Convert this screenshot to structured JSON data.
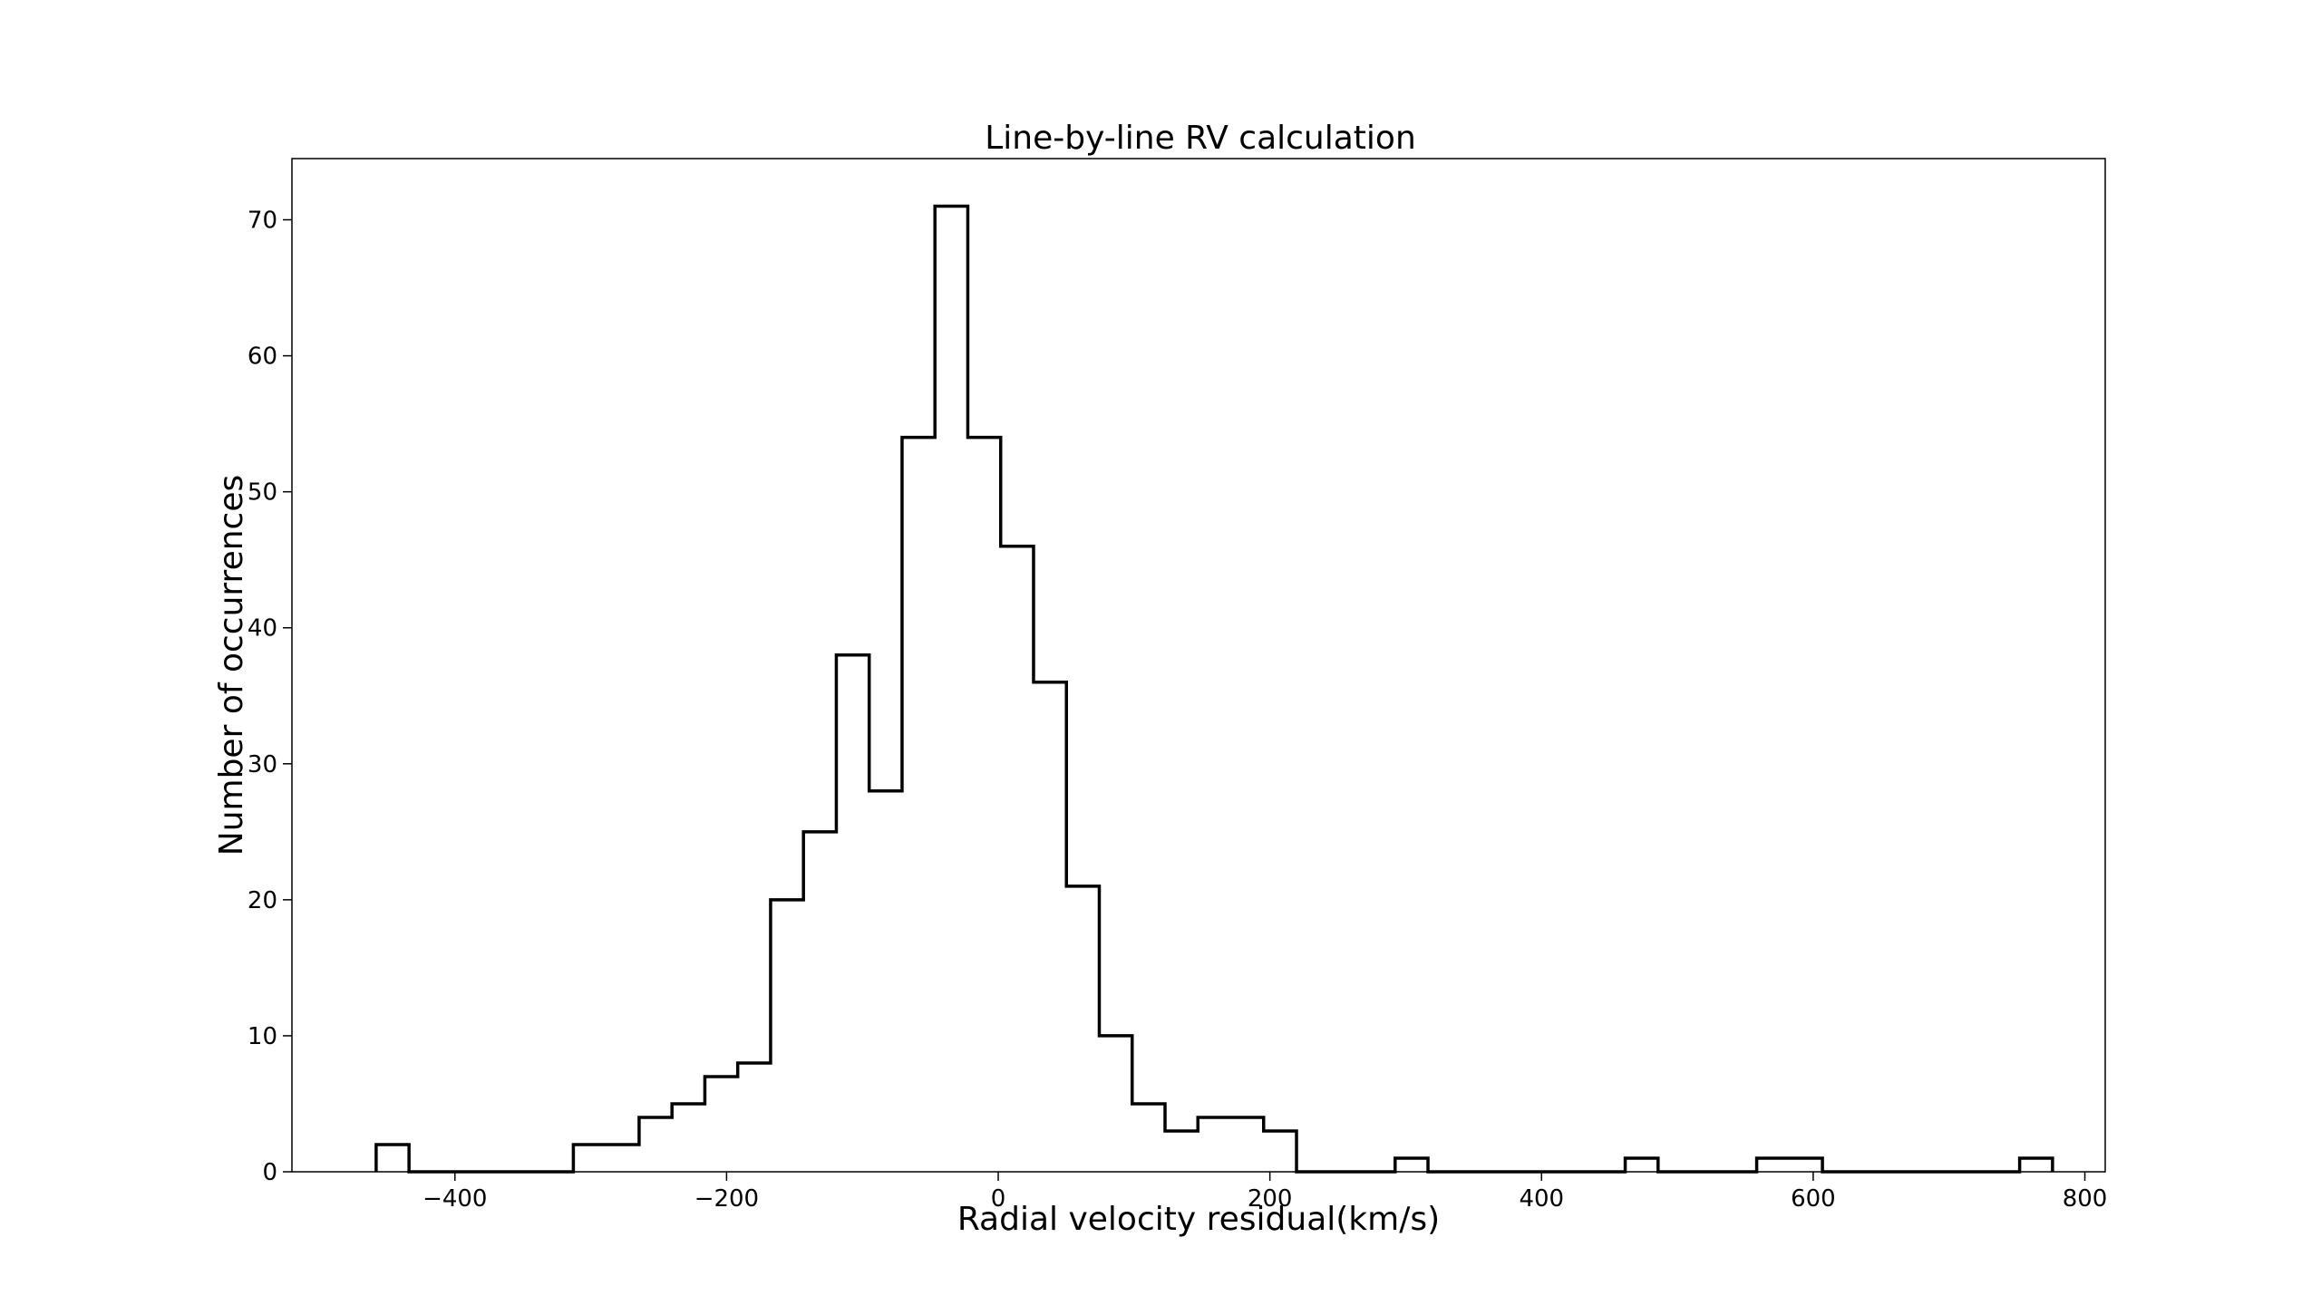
{
  "chart_data": {
    "type": "histogram",
    "title": "Line-by-line RV calculation",
    "xlabel": "Radial velocity residual(km/s)",
    "ylabel": "Number of occurrences",
    "xlim": [
      -520,
      815
    ],
    "ylim": [
      0,
      74.5
    ],
    "xticks": [
      -400,
      -200,
      0,
      200,
      400,
      600,
      800
    ],
    "xtick_labels": [
      "−400",
      "−200",
      "0",
      "200",
      "400",
      "600",
      "800"
    ],
    "yticks": [
      0,
      10,
      20,
      30,
      40,
      50,
      60,
      70
    ],
    "ytick_labels": [
      "0",
      "10",
      "20",
      "30",
      "40",
      "50",
      "60",
      "70"
    ],
    "grid": false,
    "histtype": "step",
    "line_color": "#000000",
    "bin_start": -458,
    "bin_width": 24.2,
    "counts": [
      2,
      0,
      0,
      0,
      0,
      0,
      2,
      2,
      4,
      5,
      7,
      8,
      20,
      25,
      38,
      28,
      54,
      71,
      54,
      46,
      36,
      21,
      10,
      5,
      3,
      4,
      4,
      3,
      0,
      0,
      0,
      1,
      0,
      0,
      0,
      0,
      0,
      0,
      1,
      0,
      0,
      0,
      1,
      1,
      0,
      0,
      0,
      0,
      0,
      0,
      1
    ]
  }
}
